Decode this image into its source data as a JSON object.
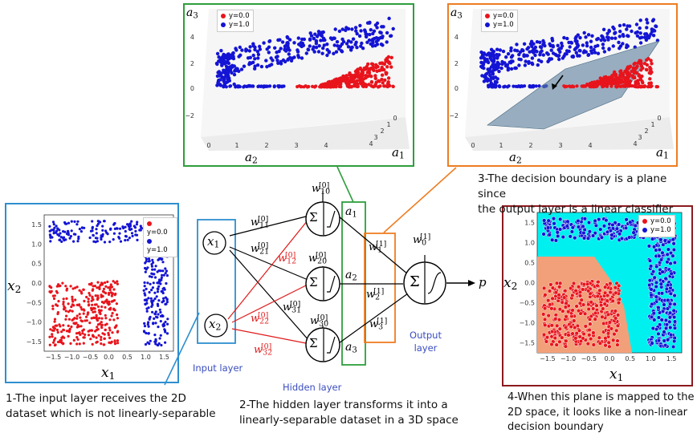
{
  "panels": {
    "input_plot": {
      "xlabel": "x",
      "xsub": "1",
      "ylabel": "x",
      "ysub": "2",
      "xticks": [
        "−1.5",
        "−1.0",
        "−0.5",
        "0.0",
        "0.5",
        "1.0",
        "1.5"
      ],
      "yticks": [
        "1.5",
        "1.0",
        "0.5",
        "0.0",
        "−0.5",
        "−1.0",
        "−1.5"
      ]
    },
    "hidden_plot": {
      "xlabel": "a",
      "xsub": "1",
      "ylabel": "a",
      "ysub": "2",
      "zlabel": "a",
      "zsub": "3",
      "zticks": [
        "4",
        "2",
        "0",
        "−2"
      ],
      "a2ticks": [
        "0",
        "1",
        "2",
        "3",
        "4"
      ],
      "a1ticks": [
        "4",
        "3",
        "2",
        "1",
        "0"
      ]
    },
    "plane_plot": {
      "xlabel": "a",
      "xsub": "1",
      "ylabel": "a",
      "ysub": "2",
      "zlabel": "a",
      "zsub": "3",
      "zticks": [
        "4",
        "2",
        "0",
        "−2"
      ],
      "a2ticks": [
        "0",
        "1",
        "2",
        "3",
        "4"
      ],
      "a1ticks": [
        "4",
        "3",
        "2",
        "1",
        "0"
      ]
    },
    "boundary_plot": {
      "xlabel": "x",
      "xsub": "1",
      "ylabel": "x",
      "ysub": "2",
      "xticks": [
        "−1.5",
        "−1.0",
        "−0.5",
        "0.0",
        "0.5",
        "1.0",
        "1.5"
      ],
      "yticks": [
        "1.5",
        "1.0",
        "0.5",
        "0.0",
        "−0.5",
        "−1.0",
        "−1.5"
      ]
    }
  },
  "legend": {
    "class0": "y=0.0",
    "class1": "y=1.0"
  },
  "network": {
    "x1": "x",
    "x1sub": "1",
    "x2": "x",
    "x2sub": "2",
    "a1": "a",
    "a1sub": "1",
    "a2": "a",
    "a2sub": "2",
    "a3": "a",
    "a3sub": "3",
    "p": "p",
    "w": {
      "w10": {
        "base": "w",
        "sup": "[0]",
        "sub": "10"
      },
      "w11": {
        "base": "w",
        "sup": "[0]",
        "sub": "11"
      },
      "w21": {
        "base": "w",
        "sup": "[0]",
        "sub": "21"
      },
      "w12": {
        "base": "w",
        "sup": "[0]",
        "sub": "12"
      },
      "w20": {
        "base": "w",
        "sup": "[0]",
        "sub": "20"
      },
      "w31": {
        "base": "w",
        "sup": "[0]",
        "sub": "31"
      },
      "w22": {
        "base": "w",
        "sup": "[0]",
        "sub": "22"
      },
      "w30": {
        "base": "w",
        "sup": "[0]",
        "sub": "30"
      },
      "w32": {
        "base": "w",
        "sup": "[0]",
        "sub": "32"
      },
      "o0": {
        "base": "w",
        "sup": "[1]",
        "sub": "0"
      },
      "o1": {
        "base": "w",
        "sup": "[1]",
        "sub": "1"
      },
      "o2": {
        "base": "w",
        "sup": "[1]",
        "sub": "2"
      },
      "o3": {
        "base": "w",
        "sup": "[1]",
        "sub": "3"
      }
    },
    "sigma": "Σ",
    "input_layer": "Input layer",
    "hidden_layer": "Hidden layer",
    "output_layer_1": "Output",
    "output_layer_2": "layer"
  },
  "captions": {
    "c1_l1": "1-The input layer receives the 2D",
    "c1_l2": "dataset which is not linearly-separable",
    "c2_l1": "2-The hidden layer transforms it into a",
    "c2_l2": "linearly-separable dataset in a 3D space",
    "c3_l1": "3-The decision boundary is a plane since",
    "c3_l2": "the output layer is a linear classifier",
    "c4_l1": "4-When this plane is mapped to the",
    "c4_l2": "2D space, it looks like a non-linear",
    "c4_l3": "decision boundary"
  },
  "colors": {
    "red": "#e8141c",
    "blue": "#1414d4",
    "cyan": "#00f0f0",
    "salmon": "#f2a07a",
    "frame_input": "#2e8fcf",
    "frame_hidden": "#2e9e3c",
    "frame_output": "#ee7d22",
    "frame_boundary": "#8b1a1f",
    "red_text": "#e21b1b",
    "layer_text": "#3a4dbf"
  }
}
